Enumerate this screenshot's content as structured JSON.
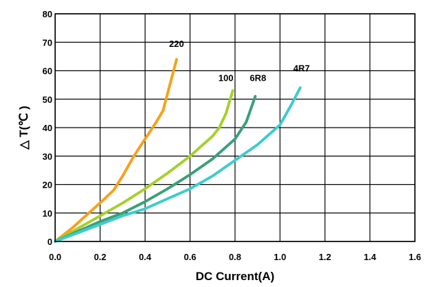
{
  "chart_data": {
    "type": "line",
    "xlabel": "DC Current(A)",
    "ylabel": "△ T(℃ )",
    "xlim": [
      0,
      1.6
    ],
    "ylim": [
      0,
      80
    ],
    "xticks": [
      "0.0",
      "0.2",
      "0.4",
      "0.6",
      "0.8",
      "1.0",
      "1.2",
      "1.4",
      "1.6"
    ],
    "yticks": [
      "0",
      "10",
      "20",
      "30",
      "40",
      "50",
      "60",
      "70",
      "80"
    ],
    "grid": true,
    "series": [
      {
        "name": "220",
        "color": "#f7a11a",
        "points": [
          [
            0.0,
            0.0
          ],
          [
            0.08,
            5
          ],
          [
            0.15,
            10
          ],
          [
            0.22,
            15
          ],
          [
            0.26,
            18
          ],
          [
            0.3,
            23
          ],
          [
            0.35,
            30
          ],
          [
            0.4,
            36
          ],
          [
            0.45,
            42
          ],
          [
            0.48,
            46
          ],
          [
            0.5,
            52
          ],
          [
            0.52,
            58
          ],
          [
            0.54,
            64
          ]
        ]
      },
      {
        "name": "100",
        "color": "#a6d02c",
        "points": [
          [
            0.0,
            0.0
          ],
          [
            0.1,
            4.5
          ],
          [
            0.2,
            9
          ],
          [
            0.3,
            13.5
          ],
          [
            0.4,
            18.5
          ],
          [
            0.5,
            24
          ],
          [
            0.6,
            30
          ],
          [
            0.7,
            37
          ],
          [
            0.73,
            40
          ],
          [
            0.76,
            45
          ],
          [
            0.79,
            53
          ]
        ]
      },
      {
        "name": "6R8",
        "color": "#3aa079",
        "points": [
          [
            0.0,
            0.0
          ],
          [
            0.1,
            3.5
          ],
          [
            0.2,
            7
          ],
          [
            0.3,
            10
          ],
          [
            0.4,
            14
          ],
          [
            0.5,
            18.5
          ],
          [
            0.6,
            23.5
          ],
          [
            0.7,
            29
          ],
          [
            0.8,
            36
          ],
          [
            0.85,
            42
          ],
          [
            0.89,
            51
          ]
        ]
      },
      {
        "name": "4R7",
        "color": "#3ecccc",
        "points": [
          [
            0.0,
            0.0
          ],
          [
            0.1,
            3
          ],
          [
            0.2,
            6
          ],
          [
            0.3,
            9
          ],
          [
            0.4,
            11.5
          ],
          [
            0.5,
            15
          ],
          [
            0.6,
            18.5
          ],
          [
            0.7,
            23
          ],
          [
            0.8,
            28.5
          ],
          [
            0.9,
            34
          ],
          [
            1.0,
            41
          ],
          [
            1.05,
            48
          ],
          [
            1.09,
            54
          ]
        ]
      }
    ]
  }
}
